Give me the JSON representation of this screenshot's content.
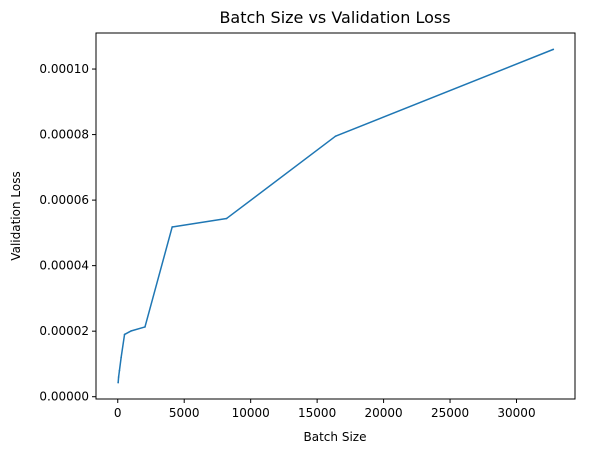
{
  "chart_data": {
    "type": "line",
    "title": "Batch Size vs Validation Loss",
    "xlabel": "Batch Size",
    "ylabel": "Validation Loss",
    "xlim": [
      -1636,
      34400
    ],
    "ylim": [
      -7e-07,
      0.000111
    ],
    "xticks": [
      {
        "value": 0,
        "label": "0"
      },
      {
        "value": 5000,
        "label": "5000"
      },
      {
        "value": 10000,
        "label": "10000"
      },
      {
        "value": 15000,
        "label": "15000"
      },
      {
        "value": 20000,
        "label": "20000"
      },
      {
        "value": 25000,
        "label": "25000"
      },
      {
        "value": 30000,
        "label": "30000"
      }
    ],
    "yticks": [
      {
        "value": 0,
        "label": "0.00000"
      },
      {
        "value": 2e-05,
        "label": "0.00002"
      },
      {
        "value": 4e-05,
        "label": "0.00004"
      },
      {
        "value": 6e-05,
        "label": "0.00006"
      },
      {
        "value": 8e-05,
        "label": "0.00008"
      },
      {
        "value": 0.0001,
        "label": "0.00010"
      }
    ],
    "grid": false,
    "series": [
      {
        "color": "#1f77b4",
        "x": [
          32,
          64,
          128,
          256,
          512,
          1024,
          2048,
          4096,
          8192,
          16384,
          32768
        ],
        "y": [
          4.3e-06,
          6e-06,
          8e-06,
          1.2e-05,
          1.9e-05,
          2.01e-05,
          2.13e-05,
          5.18e-05,
          5.44e-05,
          7.95e-05,
          0.000106
        ]
      }
    ]
  }
}
